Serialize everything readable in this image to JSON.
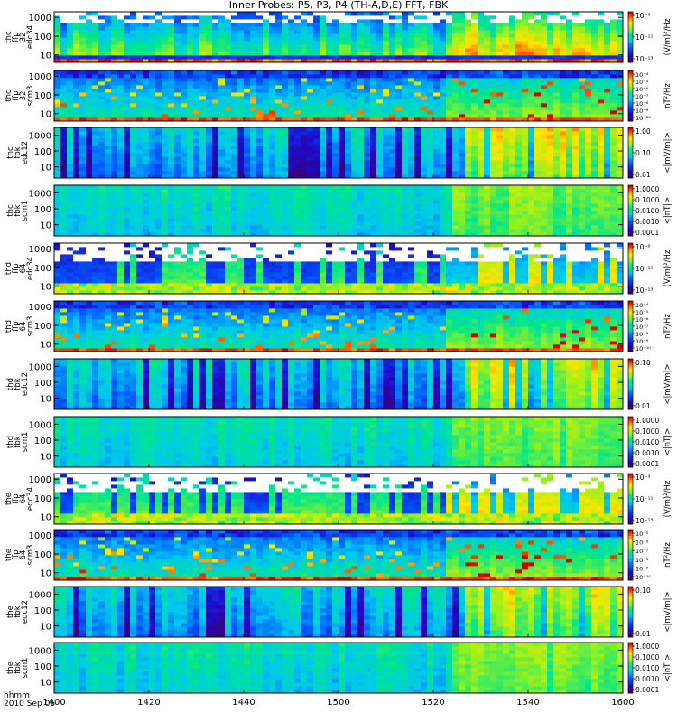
{
  "title": "Inner Probes: P5, P3, P4 (TH-A,D,E) FFT, FBK",
  "footer": {
    "time_label": "hhmm",
    "date_label": "2010 Sep 05"
  },
  "x_axis": {
    "tick_labels": [
      "1400",
      "1420",
      "1440",
      "1500",
      "1520",
      "1540",
      "1600"
    ],
    "ticks_min": [
      0,
      20,
      40,
      60,
      80,
      100,
      120
    ],
    "range_min": [
      0,
      120
    ]
  },
  "chart_data": [
    {
      "type": "heatmap",
      "ylabel": [
        "thc",
        "ffp",
        "32",
        "edc34"
      ],
      "y_ticks": [
        "1000",
        "100",
        "10"
      ],
      "y_values": [
        1000,
        100,
        10
      ],
      "ylim": [
        4,
        2000
      ],
      "scale": "log",
      "colorbar": {
        "label": "(V/m)²/Hz",
        "ticks": [
          "10⁻⁹",
          "10⁻¹¹",
          "10⁻¹³"
        ]
      },
      "style": "efield_ffp",
      "seed": 11
    },
    {
      "type": "heatmap",
      "ylabel": [
        "thc",
        "ffp",
        "32",
        "scm3"
      ],
      "y_ticks": [
        "1000",
        "100",
        "10"
      ],
      "y_values": [
        1000,
        100,
        10
      ],
      "ylim": [
        4,
        2000
      ],
      "scale": "log",
      "colorbar": {
        "label": "nT²/Hz",
        "ticks": [
          "10⁻⁴",
          "10⁻⁵",
          "10⁻⁶",
          "10⁻⁷",
          "10⁻⁸",
          "10⁻⁹",
          "10⁻¹⁰"
        ]
      },
      "style": "bfield_ffp",
      "seed": 12
    },
    {
      "type": "heatmap",
      "ylabel": [
        "thc",
        "fbk",
        "edc12"
      ],
      "y_ticks": [
        "1000",
        "100",
        "10"
      ],
      "y_values": [
        1000,
        100,
        10
      ],
      "ylim": [
        2,
        3000
      ],
      "scale": "log",
      "colorbar": {
        "label": "<|mV/m|>",
        "ticks": [
          "1.00",
          "0.10",
          "0.01"
        ]
      },
      "style": "fbk_e",
      "seed": 13
    },
    {
      "type": "heatmap",
      "ylabel": [
        "thc",
        "fbk",
        "scm1"
      ],
      "y_ticks": [
        "1000",
        "100",
        "10"
      ],
      "y_values": [
        1000,
        100,
        10
      ],
      "ylim": [
        2,
        3000
      ],
      "scale": "log",
      "colorbar": {
        "label": "<|nT|>",
        "ticks": [
          "1.0000",
          "0.1000",
          "0.0100",
          "0.0010",
          "0.0001"
        ]
      },
      "style": "fbk_b",
      "seed": 14
    },
    {
      "type": "heatmap",
      "ylabel": [
        "thd",
        "ffp",
        "64",
        "edc34"
      ],
      "y_ticks": [
        "1000",
        "100",
        "10"
      ],
      "y_values": [
        1000,
        100,
        10
      ],
      "ylim": [
        4,
        2000
      ],
      "scale": "log",
      "colorbar": {
        "label": "(V/m)²/Hz",
        "ticks": [
          "10⁻⁹",
          "10⁻¹¹",
          "10⁻¹³"
        ]
      },
      "style": "efield_ffp2",
      "seed": 21
    },
    {
      "type": "heatmap",
      "ylabel": [
        "thd",
        "ffp",
        "64",
        "scm3"
      ],
      "y_ticks": [
        "1000",
        "100",
        "10"
      ],
      "y_values": [
        1000,
        100,
        10
      ],
      "ylim": [
        4,
        2000
      ],
      "scale": "log",
      "colorbar": {
        "label": "nT²/Hz",
        "ticks": [
          "10⁻⁴",
          "10⁻⁵",
          "10⁻⁶",
          "10⁻⁷",
          "10⁻⁸",
          "10⁻⁹",
          "10⁻¹⁰"
        ]
      },
      "style": "bfield_ffp",
      "seed": 22
    },
    {
      "type": "heatmap",
      "ylabel": [
        "thd",
        "fbk",
        "edc12"
      ],
      "y_ticks": [
        "1000",
        "100",
        "10"
      ],
      "y_values": [
        1000,
        100,
        10
      ],
      "ylim": [
        2,
        3000
      ],
      "scale": "log",
      "colorbar": {
        "label": "<|mV/m|>",
        "ticks": [
          "0.10",
          "0.01"
        ]
      },
      "style": "fbk_e",
      "seed": 23
    },
    {
      "type": "heatmap",
      "ylabel": [
        "thd",
        "fbk",
        "scm1"
      ],
      "y_ticks": [
        "1000",
        "100",
        "10"
      ],
      "y_values": [
        1000,
        100,
        10
      ],
      "ylim": [
        2,
        3000
      ],
      "scale": "log",
      "colorbar": {
        "label": "<|nT|>",
        "ticks": [
          "1.0000",
          "0.1000",
          "0.0100",
          "0.0010",
          "0.0001"
        ]
      },
      "style": "fbk_b",
      "seed": 24
    },
    {
      "type": "heatmap",
      "ylabel": [
        "the",
        "ffp",
        "64",
        "edc34"
      ],
      "y_ticks": [
        "1000",
        "100",
        "10"
      ],
      "y_values": [
        1000,
        100,
        10
      ],
      "ylim": [
        4,
        2000
      ],
      "scale": "log",
      "colorbar": {
        "label": "(V/m)²/Hz",
        "ticks": [
          "10⁻⁹",
          "10⁻¹¹",
          "10⁻¹³"
        ]
      },
      "style": "efield_ffp2",
      "seed": 31
    },
    {
      "type": "heatmap",
      "ylabel": [
        "the",
        "ffp",
        "64",
        "scm3"
      ],
      "y_ticks": [
        "1000",
        "100",
        "10"
      ],
      "y_values": [
        1000,
        100,
        10
      ],
      "ylim": [
        4,
        2000
      ],
      "scale": "log",
      "colorbar": {
        "label": "nT²/Hz",
        "ticks": [
          "10⁻⁵",
          "10⁻⁶",
          "10⁻⁷",
          "10⁻⁸",
          "10⁻⁹",
          "10⁻¹⁰"
        ]
      },
      "style": "bfield_ffp",
      "seed": 32
    },
    {
      "type": "heatmap",
      "ylabel": [
        "the",
        "fbk",
        "edc12"
      ],
      "y_ticks": [
        "1000",
        "100",
        "10"
      ],
      "y_values": [
        1000,
        100,
        10
      ],
      "ylim": [
        2,
        3000
      ],
      "scale": "log",
      "colorbar": {
        "label": "<|mV/m|>",
        "ticks": [
          "0.10",
          "0.01"
        ]
      },
      "style": "fbk_e",
      "seed": 33
    },
    {
      "type": "heatmap",
      "ylabel": [
        "the",
        "fbk",
        "scm1"
      ],
      "y_ticks": [
        "1000",
        "100",
        "10"
      ],
      "y_values": [
        1000,
        100,
        10
      ],
      "ylim": [
        2,
        3000
      ],
      "scale": "log",
      "colorbar": {
        "label": "<|nT|>",
        "ticks": [
          "1.0000",
          "0.1000",
          "0.0100",
          "0.0010",
          "0.0001"
        ]
      },
      "style": "fbk_b",
      "seed": 34
    }
  ]
}
